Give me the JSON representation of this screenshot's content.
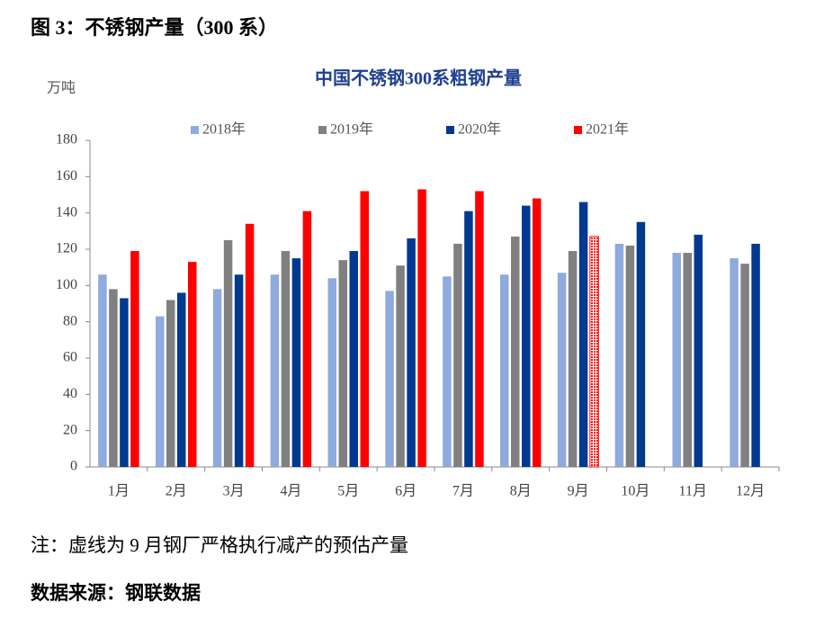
{
  "figure_title": "图 3：不锈钢产量（300 系）",
  "chart_data": {
    "type": "bar",
    "title": "中国不锈钢300系粗钢产量",
    "y_unit": "万吨",
    "categories": [
      "1月",
      "2月",
      "3月",
      "4月",
      "5月",
      "6月",
      "7月",
      "8月",
      "9月",
      "10月",
      "11月",
      "12月"
    ],
    "series": [
      {
        "name": "2018年",
        "color": "#8faadc",
        "values": [
          106,
          83,
          98,
          106,
          104,
          97,
          105,
          106,
          107,
          123,
          118,
          115
        ]
      },
      {
        "name": "2019年",
        "color": "#808080",
        "values": [
          98,
          92,
          125,
          119,
          114,
          111,
          123,
          127,
          119,
          122,
          118,
          112
        ]
      },
      {
        "name": "2020年",
        "color": "#003990",
        "values": [
          93,
          96,
          106,
          115,
          119,
          126,
          141,
          144,
          146,
          135,
          128,
          123
        ]
      },
      {
        "name": "2021年",
        "color": "#ff0000",
        "values": [
          119,
          113,
          134,
          141,
          152,
          153,
          152,
          148,
          127,
          null,
          null,
          null
        ],
        "patterned_points": [
          8
        ]
      }
    ],
    "ylim": [
      0,
      180
    ],
    "yticks": [
      0,
      20,
      40,
      60,
      80,
      100,
      120,
      140,
      160,
      180
    ],
    "grid": false,
    "legend": "top"
  },
  "note": "注：虚线为 9 月钢厂严格执行减产的预估产量",
  "source": "数据来源：钢联数据"
}
